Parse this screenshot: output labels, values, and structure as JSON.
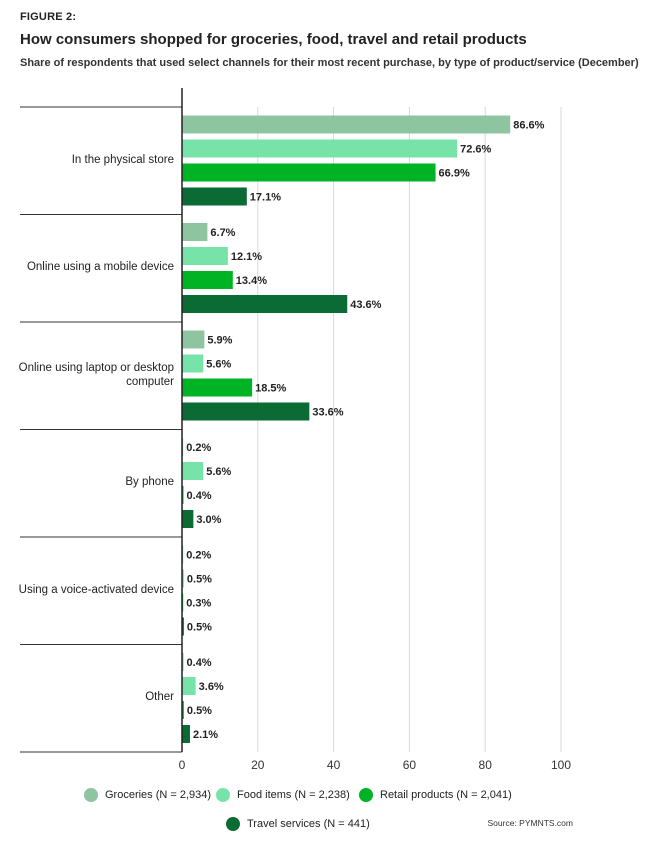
{
  "figure_label": "FIGURE 2:",
  "title": "How consumers shopped for groceries, food, travel and retail products",
  "subtitle": "Share of respondents that used select channels for their most recent purchase, by type of product/service (December)",
  "source": "Source: PYMNTS.com",
  "colors": {
    "groceries": "#8fc4a0",
    "food": "#78e3a8",
    "retail": "#00b324",
    "travel": "#0a6b35"
  },
  "chart_data": {
    "type": "bar",
    "orientation": "horizontal",
    "categories": [
      "In the physical store",
      "Online using a mobile device",
      "Online using laptop or desktop computer",
      "By phone",
      "Using a voice-activated device",
      "Other"
    ],
    "series": [
      {
        "name": "Groceries (N = 2,934)",
        "values": [
          86.6,
          6.7,
          5.9,
          0.2,
          0.2,
          0.4
        ]
      },
      {
        "name": "Food items (N = 2,238)",
        "values": [
          72.6,
          12.1,
          5.6,
          5.6,
          0.5,
          3.6
        ]
      },
      {
        "name": "Retail products (N = 2,041)",
        "values": [
          66.9,
          13.4,
          18.5,
          0.4,
          0.3,
          0.5
        ]
      },
      {
        "name": "Travel services (N = 441)",
        "values": [
          17.1,
          43.6,
          33.6,
          3.0,
          0.5,
          2.1
        ]
      }
    ],
    "value_labels": [
      [
        "86.6%",
        "6.7%",
        "5.9%",
        "0.2%",
        "0.2%",
        "0.4%"
      ],
      [
        "72.6%",
        "12.1%",
        "5.6%",
        "5.6%",
        "0.5%",
        "3.6%"
      ],
      [
        "66.9%",
        "13.4%",
        "18.5%",
        "0.4%",
        "0.3%",
        "0.5%"
      ],
      [
        "17.1%",
        "43.6%",
        "33.6%",
        "3.0%",
        "0.5%",
        "2.1%"
      ]
    ],
    "x_ticks": [
      "0",
      "20",
      "40",
      "60",
      "80",
      "100"
    ],
    "xlim": [
      0,
      100
    ],
    "grid": true,
    "legend_position": "bottom"
  }
}
